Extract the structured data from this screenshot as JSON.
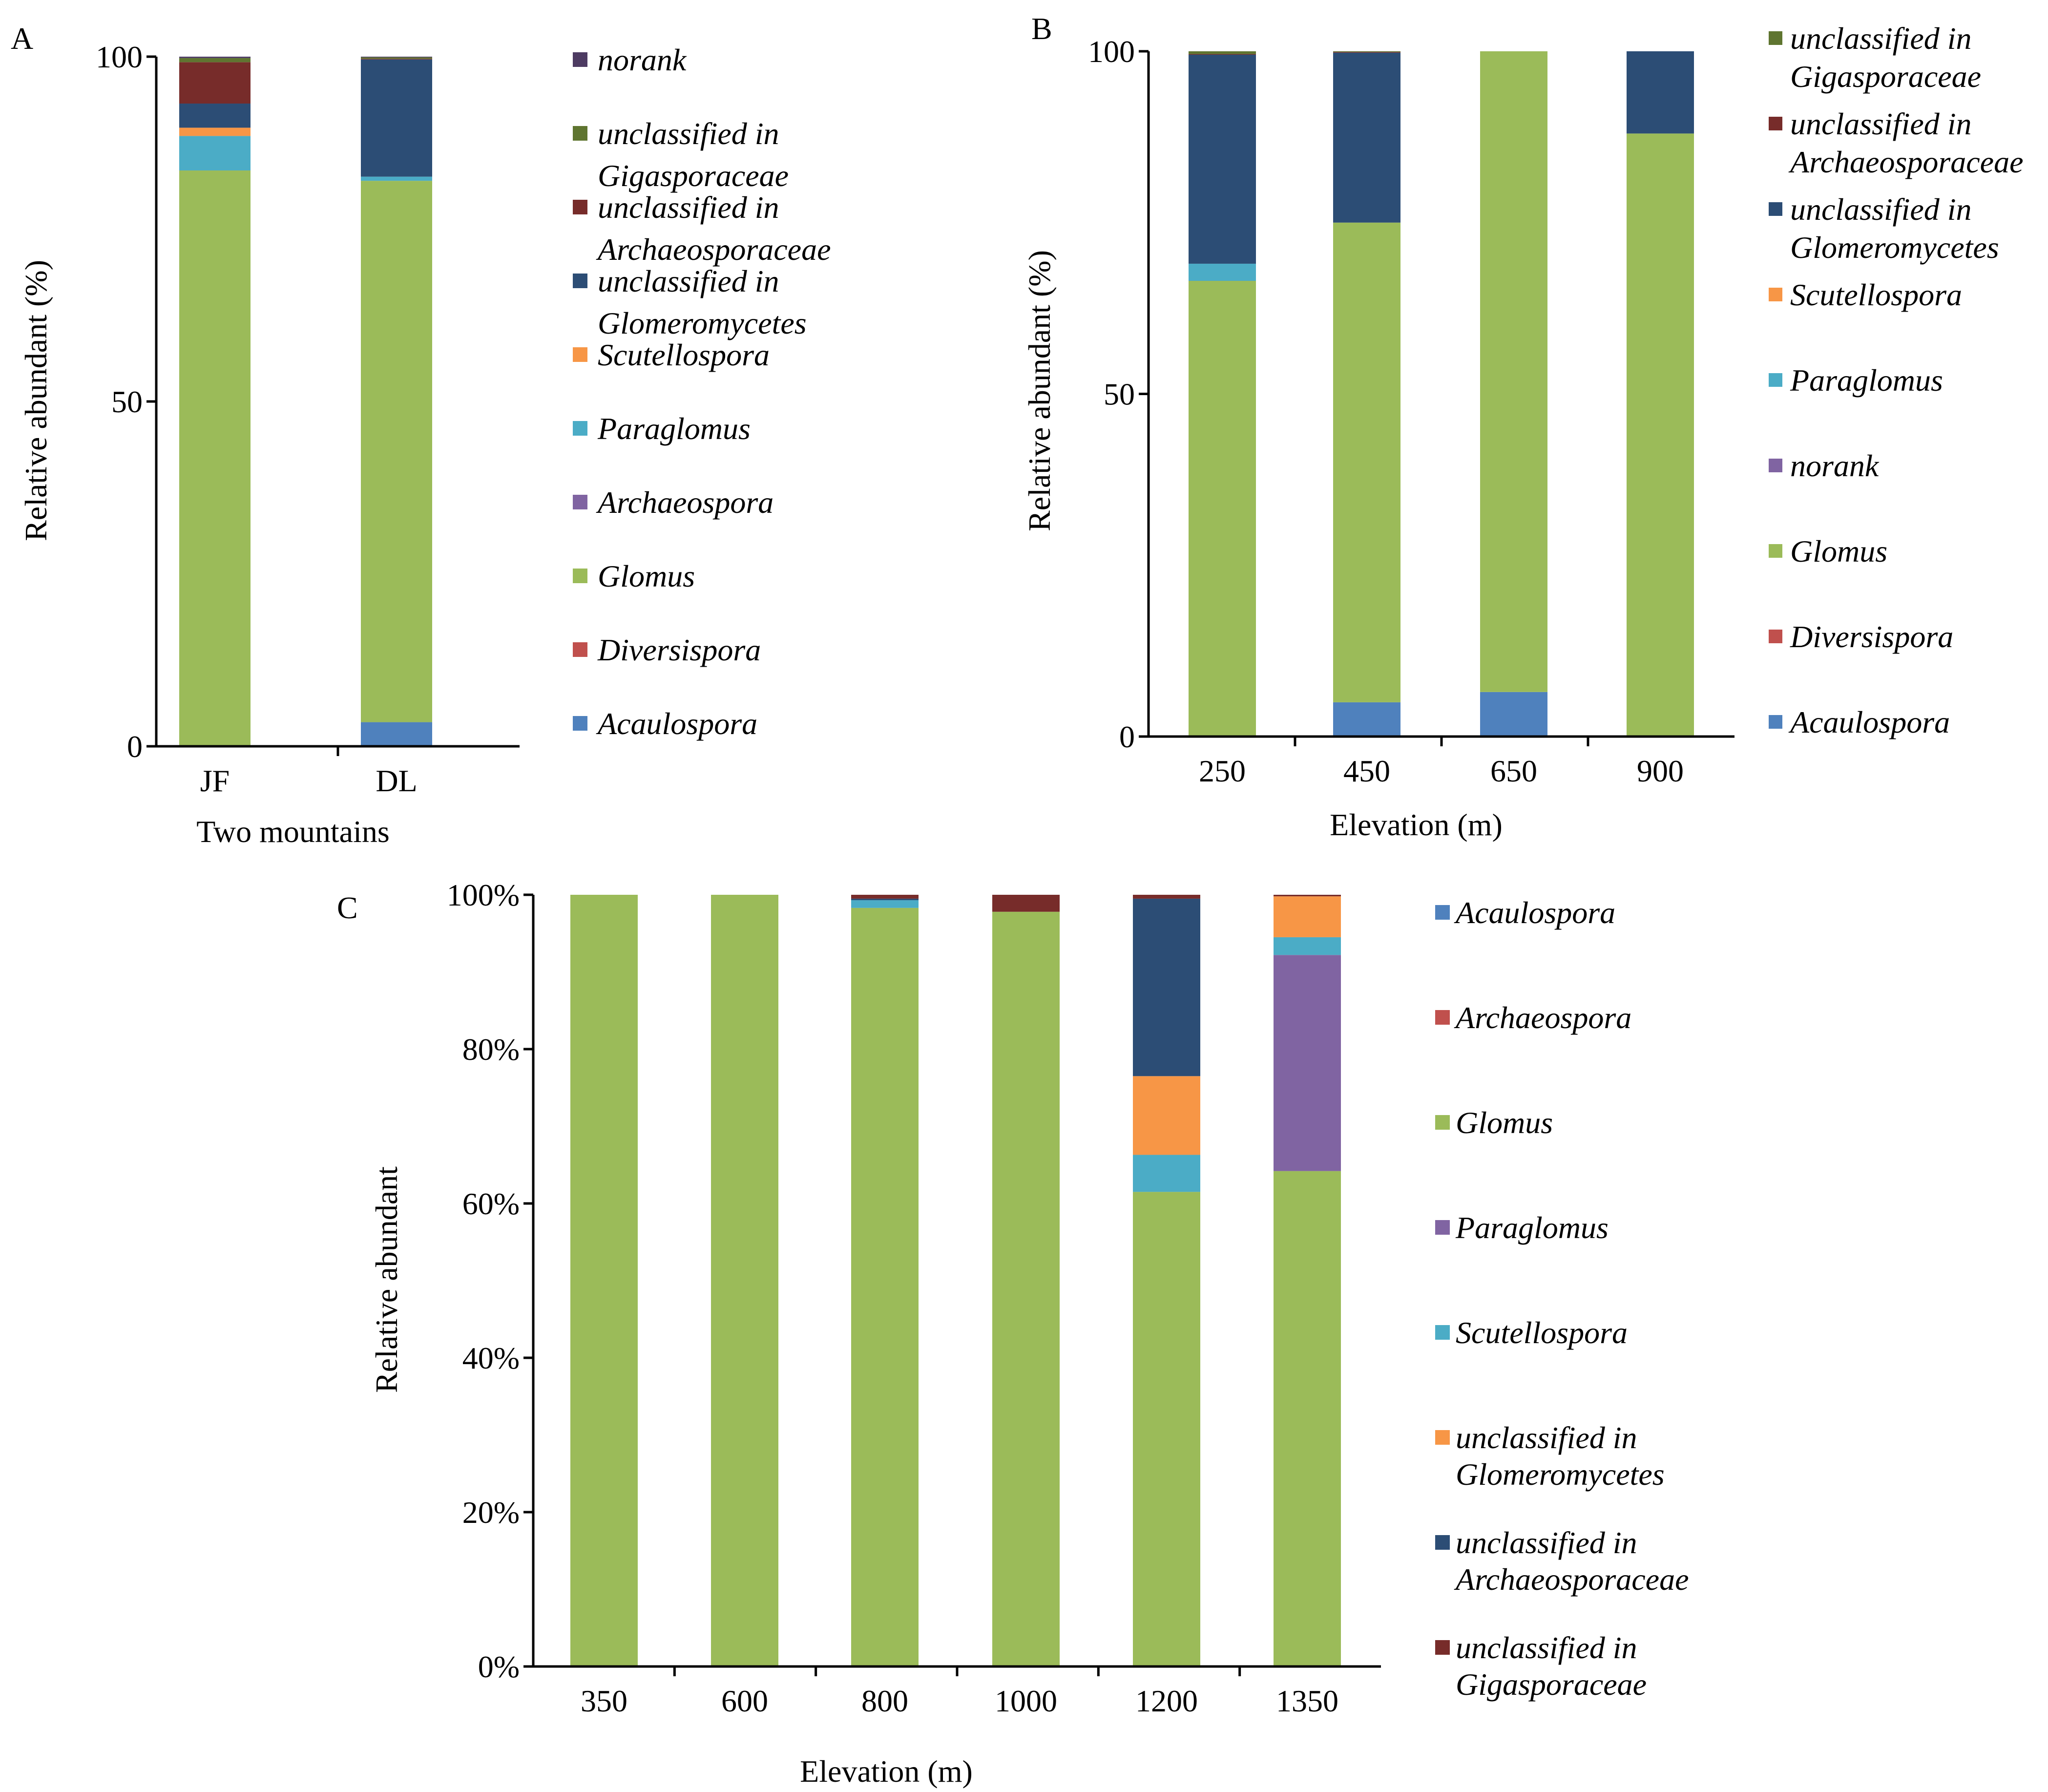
{
  "chart_data": [
    {
      "panel": "A",
      "type": "bar",
      "stacked": true,
      "categories": [
        "JF",
        "DL"
      ],
      "xlabel": "Two mountains",
      "ylabel": "Relative abundant (%)",
      "ylim": [
        0,
        100
      ],
      "yticks": [
        "0",
        "50",
        "100"
      ],
      "series": [
        {
          "name": "Acaulospora",
          "color": "#4F81BD",
          "values": [
            0,
            3.5
          ]
        },
        {
          "name": "Diversispora",
          "color": "#C0504D",
          "values": [
            0,
            0
          ]
        },
        {
          "name": "Glomus",
          "color": "#9BBB59",
          "values": [
            83.5,
            78.5
          ]
        },
        {
          "name": "Archaeospora",
          "color": "#8064A2",
          "values": [
            0,
            0
          ]
        },
        {
          "name": "Paraglomus",
          "color": "#4BACC6",
          "values": [
            5,
            0.6
          ]
        },
        {
          "name": "Scutellospora",
          "color": "#F79646",
          "values": [
            1.2,
            0
          ]
        },
        {
          "name": "unclassified in Glomeromycetes",
          "color": "#2C4D75",
          "values": [
            3.5,
            17
          ]
        },
        {
          "name": "unclassified in Archaeosporaceae",
          "color": "#772C2A",
          "values": [
            6,
            0.1
          ]
        },
        {
          "name": "unclassified in Gigasporaceae",
          "color": "#5F7530",
          "values": [
            0.6,
            0.2
          ]
        },
        {
          "name": "norank",
          "color": "#4D3B62",
          "values": [
            0.2,
            0.1
          ]
        }
      ],
      "legend": [
        {
          "name": "norank",
          "lines": [
            "norank"
          ],
          "color": "#4D3B62"
        },
        {
          "name": "unclassified in Gigasporaceae",
          "lines": [
            "unclassified in",
            "Gigasporaceae"
          ],
          "color": "#5F7530"
        },
        {
          "name": "unclassified in Archaeosporaceae",
          "lines": [
            "unclassified in",
            "Archaeosporaceae"
          ],
          "color": "#772C2A"
        },
        {
          "name": "unclassified in Glomeromycetes",
          "lines": [
            "unclassified in",
            "Glomeromycetes"
          ],
          "color": "#2C4D75"
        },
        {
          "name": "Scutellospora",
          "lines": [
            "Scutellospora"
          ],
          "color": "#F79646"
        },
        {
          "name": "Paraglomus",
          "lines": [
            "Paraglomus"
          ],
          "color": "#4BACC6"
        },
        {
          "name": "Archaeospora",
          "lines": [
            "Archaeospora"
          ],
          "color": "#8064A2"
        },
        {
          "name": "Glomus",
          "lines": [
            "Glomus"
          ],
          "color": "#9BBB59"
        },
        {
          "name": "Diversispora",
          "lines": [
            "Diversispora"
          ],
          "color": "#C0504D"
        },
        {
          "name": "Acaulospora",
          "lines": [
            "Acaulospora"
          ],
          "color": "#4F81BD"
        }
      ]
    },
    {
      "panel": "B",
      "type": "bar",
      "stacked": true,
      "categories": [
        "250",
        "450",
        "650",
        "900"
      ],
      "xlabel": "Elevation (m)",
      "ylabel": "Relative abundant (%)",
      "ylim": [
        0,
        100
      ],
      "yticks": [
        "0",
        "50",
        "100"
      ],
      "series": [
        {
          "name": "Acaulospora",
          "color": "#4F81BD",
          "values": [
            0,
            5,
            6.5,
            0
          ]
        },
        {
          "name": "Diversispora",
          "color": "#C0504D",
          "values": [
            0,
            0,
            0,
            0
          ]
        },
        {
          "name": "Glomus",
          "color": "#9BBB59",
          "values": [
            66.5,
            70,
            93.5,
            88
          ]
        },
        {
          "name": "norank",
          "color": "#8064A2",
          "values": [
            0,
            0,
            0,
            0
          ]
        },
        {
          "name": "Paraglomus",
          "color": "#4BACC6",
          "values": [
            2.5,
            0,
            0,
            0
          ]
        },
        {
          "name": "Scutellospora",
          "color": "#F79646",
          "values": [
            0,
            0,
            0,
            0
          ]
        },
        {
          "name": "unclassified in Glomeromycetes",
          "color": "#2C4D75",
          "values": [
            30.5,
            24.8,
            0,
            12
          ]
        },
        {
          "name": "unclassified in Archaeosporaceae",
          "color": "#772C2A",
          "values": [
            0.1,
            0.1,
            0,
            0
          ]
        },
        {
          "name": "unclassified in Gigasporaceae",
          "color": "#5F7530",
          "values": [
            0.4,
            0.1,
            0,
            0
          ]
        }
      ],
      "legend": [
        {
          "name": "unclassified in Gigasporaceae",
          "lines": [
            "unclassified in",
            "Gigasporaceae"
          ],
          "color": "#5F7530"
        },
        {
          "name": "unclassified in Archaeosporaceae",
          "lines": [
            "unclassified in",
            "Archaeosporaceae"
          ],
          "color": "#772C2A"
        },
        {
          "name": "unclassified in Glomeromycetes",
          "lines": [
            "unclassified in",
            "Glomeromycetes"
          ],
          "color": "#2C4D75"
        },
        {
          "name": "Scutellospora",
          "lines": [
            "Scutellospora"
          ],
          "color": "#F79646"
        },
        {
          "name": "Paraglomus",
          "lines": [
            "Paraglomus"
          ],
          "color": "#4BACC6"
        },
        {
          "name": "norank",
          "lines": [
            "norank"
          ],
          "color": "#8064A2"
        },
        {
          "name": "Glomus",
          "lines": [
            "Glomus"
          ],
          "color": "#9BBB59"
        },
        {
          "name": "Diversispora",
          "lines": [
            "Diversispora"
          ],
          "color": "#C0504D"
        },
        {
          "name": "Acaulospora",
          "lines": [
            "Acaulospora"
          ],
          "color": "#4F81BD"
        }
      ]
    },
    {
      "panel": "C",
      "type": "bar",
      "stacked": true,
      "categories": [
        "350",
        "600",
        "800",
        "1000",
        "1200",
        "1350"
      ],
      "xlabel": "Elevation (m)",
      "ylabel": "Relative abundant",
      "ylim": [
        0,
        100
      ],
      "yticks": [
        "0%",
        "20%",
        "40%",
        "60%",
        "80%",
        "100%"
      ],
      "series": [
        {
          "name": "Acaulospora",
          "color": "#4F81BD",
          "values": [
            0,
            0,
            0,
            0,
            0,
            0
          ]
        },
        {
          "name": "Archaeospora",
          "color": "#C0504D",
          "values": [
            0,
            0,
            0,
            0,
            0,
            0
          ]
        },
        {
          "name": "Glomus",
          "color": "#9BBB59",
          "values": [
            100,
            100,
            98.3,
            97.8,
            61.5,
            64.2
          ]
        },
        {
          "name": "Paraglomus",
          "color": "#8064A2",
          "values": [
            0,
            0,
            0,
            0,
            0,
            28
          ]
        },
        {
          "name": "Scutellospora",
          "color": "#4BACC6",
          "values": [
            0,
            0,
            1,
            0,
            4.8,
            2.3
          ]
        },
        {
          "name": "unclassified in Glomeromycetes",
          "color": "#F79646",
          "values": [
            0,
            0,
            0,
            0,
            10.2,
            5.3
          ]
        },
        {
          "name": "unclassified in Archaeosporaceae",
          "color": "#2C4D75",
          "values": [
            0,
            0,
            0.2,
            0,
            23,
            0
          ]
        },
        {
          "name": "unclassified in Gigasporaceae",
          "color": "#772C2A",
          "values": [
            0,
            0,
            0.5,
            2.2,
            0.5,
            0.2
          ]
        }
      ],
      "legend": [
        {
          "name": "Acaulospora",
          "lines": [
            "Acaulospora"
          ],
          "color": "#4F81BD"
        },
        {
          "name": "Archaeospora",
          "lines": [
            "Archaeospora"
          ],
          "color": "#C0504D"
        },
        {
          "name": "Glomus",
          "lines": [
            "Glomus"
          ],
          "color": "#9BBB59"
        },
        {
          "name": "Paraglomus",
          "lines": [
            "Paraglomus"
          ],
          "color": "#8064A2"
        },
        {
          "name": "Scutellospora",
          "lines": [
            "Scutellospora"
          ],
          "color": "#4BACC6"
        },
        {
          "name": "unclassified in Glomeromycetes",
          "lines": [
            "unclassified in",
            "Glomeromycetes"
          ],
          "color": "#F79646"
        },
        {
          "name": "unclassified in Archaeosporaceae",
          "lines": [
            "unclassified in",
            "Archaeosporaceae"
          ],
          "color": "#2C4D75"
        },
        {
          "name": "unclassified in Gigasporaceae",
          "lines": [
            "unclassified in",
            "Gigasporaceae"
          ],
          "color": "#772C2A"
        }
      ]
    }
  ]
}
